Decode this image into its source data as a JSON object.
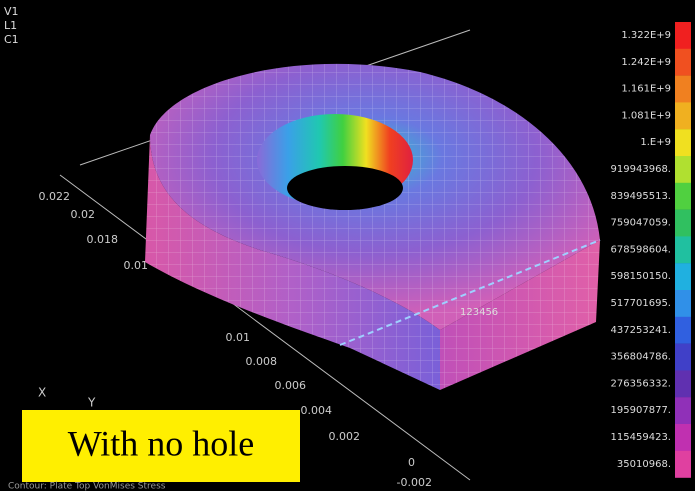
{
  "header": {
    "lines": [
      "V1",
      "L1",
      "C1"
    ]
  },
  "axis_labels": [
    "0.022",
    "0.02",
    "0.018",
    "0.01",
    "0.01",
    "0.008",
    "0.006",
    "0.004",
    "0.002",
    "0",
    "-0.002"
  ],
  "triad": {
    "x": "X",
    "y": "Y"
  },
  "node_label": "123456",
  "legend": {
    "labels": [
      "1.322E+9",
      "1.242E+9",
      "1.161E+9",
      "1.081E+9",
      "1.E+9",
      "919943968.",
      "839495513.",
      "759047059.",
      "678598604.",
      "598150150.",
      "517701695.",
      "437253241.",
      "356804786.",
      "276356332.",
      "195907877.",
      "115459423.",
      "35010968."
    ]
  },
  "caption": "With no hole",
  "footer": "Contour: Plate Top VonMises Stress"
}
